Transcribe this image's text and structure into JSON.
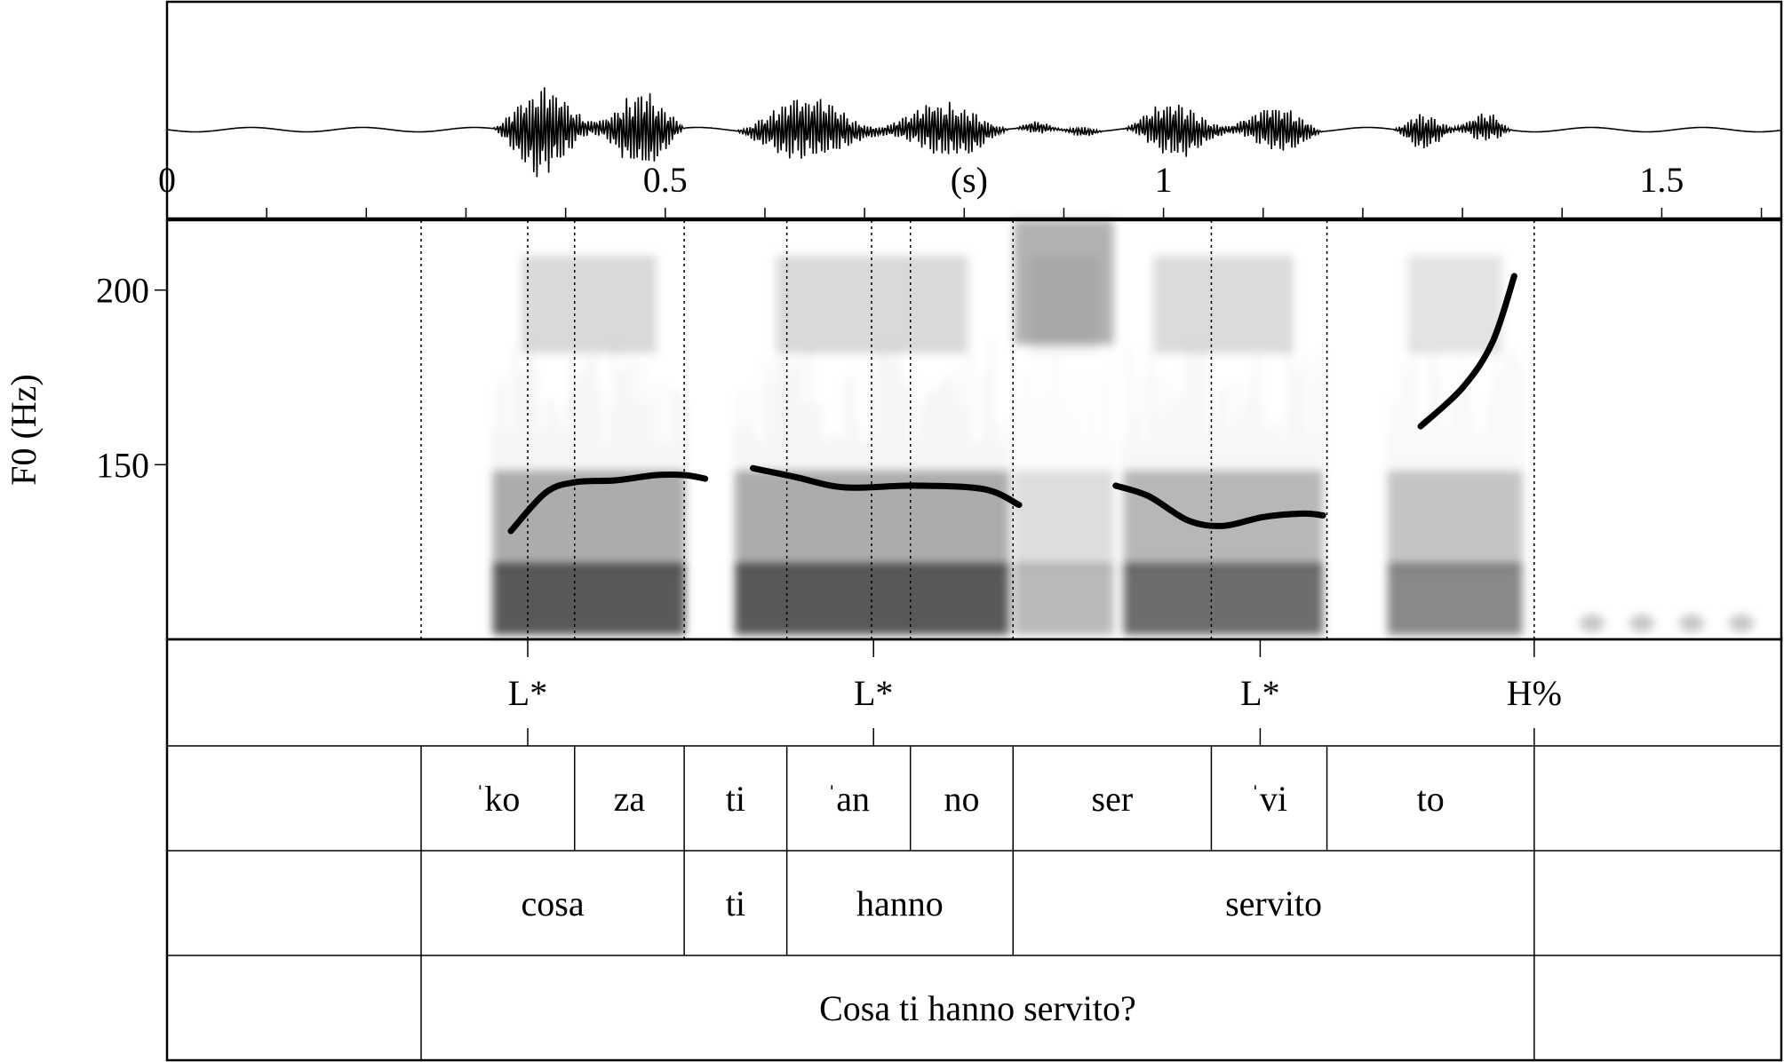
{
  "chart_data": {
    "type": "line",
    "title": "",
    "xlabel": "",
    "ylabel": "F0 (Hz)",
    "time_axis": {
      "xlim": [
        0,
        1.62
      ],
      "tick_labels": [
        {
          "t": 0,
          "label": "0"
        },
        {
          "t": 0.5,
          "label": "0.5"
        },
        {
          "t": 0.805,
          "label": "(s)"
        },
        {
          "t": 1.0,
          "label": "1"
        },
        {
          "t": 1.5,
          "label": "1.5"
        }
      ],
      "minor_ticks": [
        0,
        0.1,
        0.2,
        0.3,
        0.4,
        0.5,
        0.6,
        0.7,
        0.8,
        0.9,
        1.0,
        1.1,
        1.2,
        1.3,
        1.4,
        1.5,
        1.6
      ]
    },
    "f0_axis": {
      "ylim": [
        100,
        220
      ],
      "ticks": [
        {
          "v": 150,
          "label": "150"
        },
        {
          "v": 200,
          "label": "200"
        }
      ]
    },
    "waveform_segments": [
      {
        "t0": 0.327,
        "t1": 0.52,
        "amp": 0.9
      },
      {
        "t0": 0.57,
        "t1": 0.845,
        "amp": 0.65
      },
      {
        "t0": 0.85,
        "t1": 0.94,
        "amp": 0.12
      },
      {
        "t0": 0.96,
        "t1": 1.16,
        "amp": 0.55
      },
      {
        "t0": 1.23,
        "t1": 1.35,
        "amp": 0.35
      }
    ],
    "spectrogram_blobs": [
      {
        "t0": 0.327,
        "t1": 0.52,
        "intensity": 0.85
      },
      {
        "t0": 0.57,
        "t1": 0.845,
        "intensity": 0.85
      },
      {
        "t0": 0.85,
        "t1": 0.95,
        "intensity": 0.35
      },
      {
        "t0": 0.96,
        "t1": 1.16,
        "intensity": 0.75
      },
      {
        "t0": 1.225,
        "t1": 1.36,
        "intensity": 0.6
      }
    ],
    "series": [
      {
        "points": [
          [
            0.345,
            131
          ],
          [
            0.38,
            142
          ],
          [
            0.41,
            145
          ],
          [
            0.45,
            145.5
          ],
          [
            0.49,
            147
          ],
          [
            0.52,
            147
          ],
          [
            0.54,
            146
          ]
        ]
      },
      {
        "points": [
          [
            0.588,
            149
          ],
          [
            0.63,
            146.5
          ],
          [
            0.68,
            143.5
          ],
          [
            0.75,
            144
          ],
          [
            0.82,
            143
          ],
          [
            0.855,
            138.5
          ]
        ]
      },
      {
        "points": [
          [
            0.952,
            144
          ],
          [
            0.985,
            141
          ],
          [
            1.025,
            134
          ],
          [
            1.06,
            132.5
          ],
          [
            1.1,
            135
          ],
          [
            1.14,
            136
          ],
          [
            1.16,
            135.5
          ]
        ]
      },
      {
        "points": [
          [
            1.258,
            161
          ],
          [
            1.3,
            172
          ],
          [
            1.33,
            185
          ],
          [
            1.352,
            204
          ]
        ]
      }
    ],
    "boundaries": [
      0.255,
      0.362,
      0.409,
      0.519,
      0.622,
      0.707,
      0.746,
      0.849,
      1.048,
      1.164,
      1.372
    ]
  },
  "tiers": {
    "tones": [
      {
        "t": 0.362,
        "label": "L*"
      },
      {
        "t": 0.709,
        "label": "L*"
      },
      {
        "t": 1.097,
        "label": "L*"
      },
      {
        "t": 1.372,
        "label": "H%"
      }
    ],
    "syllables": [
      {
        "t0": 0.255,
        "t1": 0.409,
        "stress": "ˈ",
        "text": "ko"
      },
      {
        "t0": 0.409,
        "t1": 0.519,
        "stress": "",
        "text": "za"
      },
      {
        "t0": 0.519,
        "t1": 0.622,
        "stress": "",
        "text": "ti"
      },
      {
        "t0": 0.622,
        "t1": 0.746,
        "stress": "ˈ",
        "text": "an"
      },
      {
        "t0": 0.746,
        "t1": 0.849,
        "stress": "",
        "text": "no"
      },
      {
        "t0": 0.849,
        "t1": 1.048,
        "stress": "",
        "text": "ser"
      },
      {
        "t0": 1.048,
        "t1": 1.164,
        "stress": "ˈ",
        "text": "vi"
      },
      {
        "t0": 1.164,
        "t1": 1.372,
        "stress": "",
        "text": "to"
      }
    ],
    "words": [
      {
        "t0": 0.255,
        "t1": 0.519,
        "text": "cosa"
      },
      {
        "t0": 0.519,
        "t1": 0.622,
        "text": "ti"
      },
      {
        "t0": 0.622,
        "t1": 0.849,
        "text": "hanno"
      },
      {
        "t0": 0.849,
        "t1": 1.372,
        "text": "servito"
      }
    ],
    "sentence": {
      "t0": 0.255,
      "t1": 1.372,
      "text": "Cosa ti hanno servito?"
    }
  }
}
